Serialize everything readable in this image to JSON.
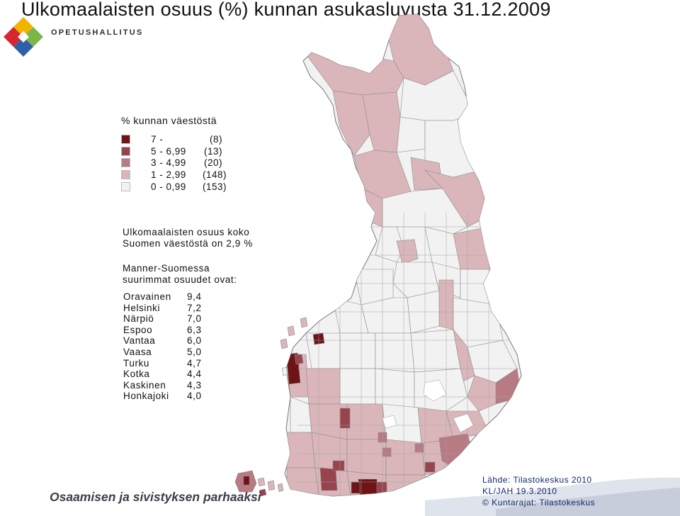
{
  "title": "Ulkomaalaisten osuus (%) kunnan asukasluvusta 31.12.2009",
  "organization": "OPETUSHALLITUS",
  "legend": {
    "title": "% kunnan väestöstä",
    "classes": [
      {
        "range": "7 -",
        "count": "(8)",
        "color": "#6e1416"
      },
      {
        "range": "5 - 6,99",
        "count": "(13)",
        "color": "#97444e"
      },
      {
        "range": "3 - 4,99",
        "count": "(20)",
        "color": "#b87a83"
      },
      {
        "range": "1 - 2,99",
        "count": "(148)",
        "color": "#dab6ba"
      },
      {
        "range": "0 - 0,99",
        "count": "(153)",
        "color": "#f2f2f2"
      }
    ]
  },
  "summary": {
    "line1": "Ulkomaalaisten osuus koko",
    "line2": "Suomen väestöstä on 2,9 %"
  },
  "ranking": {
    "heading1": "Manner-Suomessa",
    "heading2": "suurimmat osuudet ovat:",
    "rows": [
      {
        "municipality": "Oravainen",
        "value": "9,4"
      },
      {
        "municipality": "Helsinki",
        "value": "7,2"
      },
      {
        "municipality": "Närpiö",
        "value": "7,0"
      },
      {
        "municipality": "Espoo",
        "value": "6,3"
      },
      {
        "municipality": "Vantaa",
        "value": "6,0"
      },
      {
        "municipality": "Vaasa",
        "value": "5,0"
      },
      {
        "municipality": "Turku",
        "value": "4,7"
      },
      {
        "municipality": "Kotka",
        "value": "4,4"
      },
      {
        "municipality": "Kaskinen",
        "value": "4,3"
      },
      {
        "municipality": "Honkajoki",
        "value": "4,0"
      }
    ]
  },
  "footer": {
    "slogan": "Osaamisen ja sivistyksen parhaaksi",
    "source": "Lähde: Tilastokeskus 2010",
    "author": "KL/JAH 19.3.2010",
    "copyright": "© Kuntarajat: Tilastokeskus"
  }
}
